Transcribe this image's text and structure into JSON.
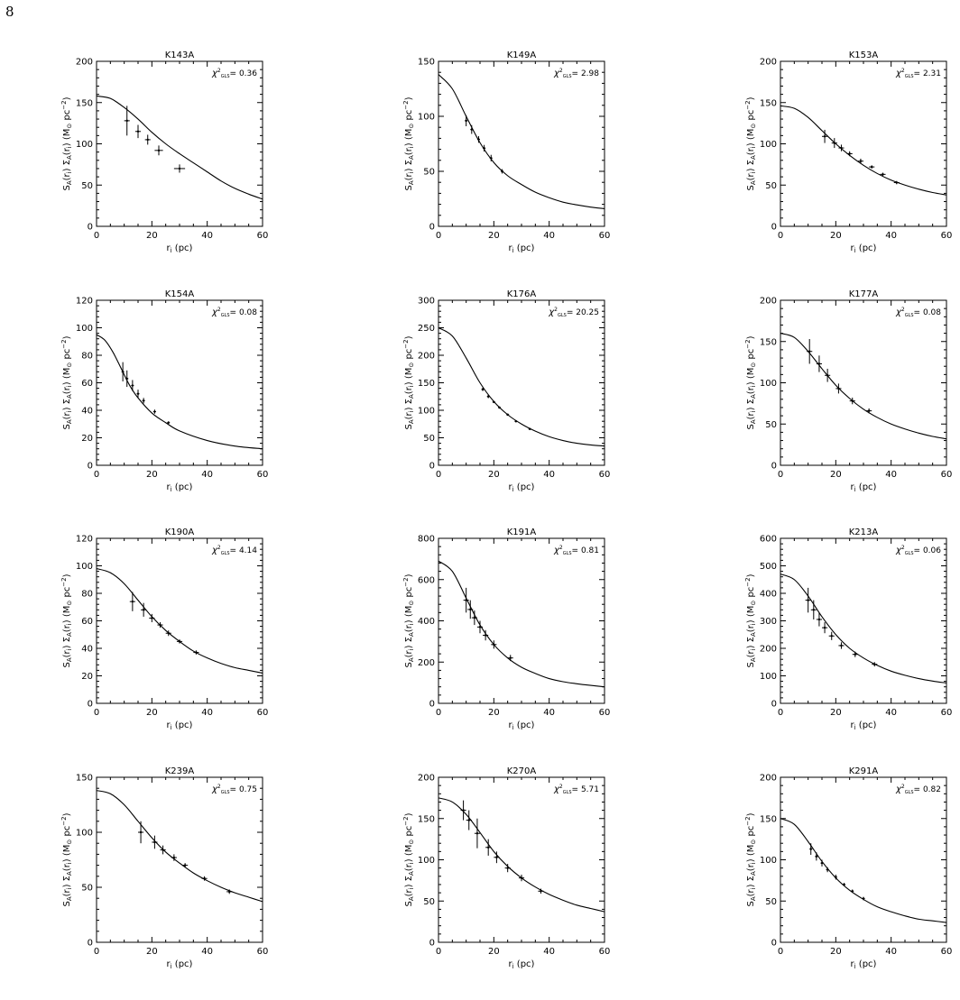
{
  "page_number": "8",
  "chart_data": [
    {
      "type": "line",
      "title": "K143A",
      "chi2_value": "0.36",
      "ylim": [
        0,
        200
      ],
      "yticks": [
        0,
        50,
        100,
        150,
        200
      ],
      "xlim": [
        0,
        60
      ],
      "xticks": [
        0,
        20,
        40,
        60
      ],
      "curve": {
        "x": [
          0,
          5,
          10,
          15,
          20,
          25,
          30,
          35,
          40,
          45,
          50,
          55,
          60
        ],
        "y": [
          158,
          155,
          144,
          130,
          114,
          100,
          88,
          77,
          66,
          55,
          46,
          39,
          33
        ]
      },
      "points": [
        {
          "x": 11,
          "y": 128,
          "xerr": 1,
          "yerr": 18
        },
        {
          "x": 15,
          "y": 115,
          "xerr": 1,
          "yerr": 8
        },
        {
          "x": 18.5,
          "y": 105,
          "xerr": 1,
          "yerr": 6
        },
        {
          "x": 22.5,
          "y": 92,
          "xerr": 1.5,
          "yerr": 6
        },
        {
          "x": 30,
          "y": 70,
          "xerr": 2,
          "yerr": 5
        }
      ]
    },
    {
      "type": "line",
      "title": "K149A",
      "chi2_value": "2.98",
      "ylim": [
        0,
        150
      ],
      "yticks": [
        0,
        50,
        100,
        150
      ],
      "xlim": [
        0,
        60
      ],
      "xticks": [
        0,
        20,
        40,
        60
      ],
      "curve": {
        "x": [
          0,
          5,
          10,
          15,
          20,
          25,
          30,
          35,
          40,
          45,
          50,
          55,
          60
        ],
        "y": [
          138,
          125,
          100,
          76,
          58,
          46,
          38,
          31,
          26,
          22,
          19.5,
          17.5,
          16
        ]
      },
      "points": [
        {
          "x": 10,
          "y": 96,
          "xerr": 0.5,
          "yerr": 5
        },
        {
          "x": 12,
          "y": 88,
          "xerr": 0.5,
          "yerr": 4
        },
        {
          "x": 14.5,
          "y": 79,
          "xerr": 0.5,
          "yerr": 3
        },
        {
          "x": 16.5,
          "y": 71,
          "xerr": 0.5,
          "yerr": 3
        },
        {
          "x": 19,
          "y": 62,
          "xerr": 0.5,
          "yerr": 3
        },
        {
          "x": 23,
          "y": 50,
          "xerr": 0.5,
          "yerr": 2
        }
      ]
    },
    {
      "type": "line",
      "title": "K153A",
      "chi2_value": "2.31",
      "ylim": [
        0,
        200
      ],
      "yticks": [
        0,
        50,
        100,
        150,
        200
      ],
      "xlim": [
        0,
        60
      ],
      "xticks": [
        0,
        20,
        40,
        60
      ],
      "curve": {
        "x": [
          0,
          5,
          10,
          15,
          20,
          25,
          30,
          35,
          40,
          45,
          50,
          55,
          60
        ],
        "y": [
          146,
          143,
          132,
          116,
          100,
          86,
          74,
          64,
          56,
          50,
          45,
          41,
          38
        ]
      },
      "points": [
        {
          "x": 16,
          "y": 109,
          "xerr": 1,
          "yerr": 8
        },
        {
          "x": 19.5,
          "y": 101,
          "xerr": 1,
          "yerr": 6
        },
        {
          "x": 22,
          "y": 95,
          "xerr": 1,
          "yerr": 4
        },
        {
          "x": 25,
          "y": 88,
          "xerr": 1,
          "yerr": 3
        },
        {
          "x": 29,
          "y": 79,
          "xerr": 1,
          "yerr": 3
        },
        {
          "x": 33,
          "y": 72,
          "xerr": 1,
          "yerr": 2
        },
        {
          "x": 37,
          "y": 63,
          "xerr": 1,
          "yerr": 2
        },
        {
          "x": 42,
          "y": 53,
          "xerr": 1,
          "yerr": 2
        }
      ]
    },
    {
      "type": "line",
      "title": "K154A",
      "chi2_value": "0.08",
      "ylim": [
        0,
        120
      ],
      "yticks": [
        0,
        20,
        40,
        60,
        80,
        100,
        120
      ],
      "xlim": [
        0,
        60
      ],
      "xticks": [
        0,
        20,
        40,
        60
      ],
      "curve": {
        "x": [
          0,
          3,
          6,
          9,
          12,
          15,
          20,
          25,
          30,
          40,
          50,
          60
        ],
        "y": [
          95,
          91,
          82,
          70,
          58,
          49,
          38,
          31,
          25,
          18,
          14,
          12
        ]
      },
      "points": [
        {
          "x": 9.5,
          "y": 68,
          "xerr": 0.5,
          "yerr": 7
        },
        {
          "x": 11,
          "y": 63,
          "xerr": 0.5,
          "yerr": 6
        },
        {
          "x": 13,
          "y": 58,
          "xerr": 0.5,
          "yerr": 4
        },
        {
          "x": 15,
          "y": 52,
          "xerr": 0.5,
          "yerr": 3
        },
        {
          "x": 17,
          "y": 47,
          "xerr": 0.5,
          "yerr": 2
        },
        {
          "x": 21,
          "y": 39,
          "xerr": 0.5,
          "yerr": 1.5
        },
        {
          "x": 26,
          "y": 31,
          "xerr": 0.5,
          "yerr": 1
        }
      ]
    },
    {
      "type": "line",
      "title": "K176A",
      "chi2_value": "20.25",
      "ylim": [
        0,
        300
      ],
      "yticks": [
        0,
        50,
        100,
        150,
        200,
        250,
        300
      ],
      "xlim": [
        0,
        60
      ],
      "xticks": [
        0,
        20,
        40,
        60
      ],
      "curve": {
        "x": [
          0,
          5,
          10,
          15,
          20,
          25,
          30,
          35,
          40,
          45,
          50,
          55,
          60
        ],
        "y": [
          250,
          235,
          195,
          150,
          116,
          92,
          75,
          62,
          52,
          45,
          40,
          37,
          35
        ]
      },
      "points": [
        {
          "x": 16,
          "y": 138,
          "xerr": 0.5,
          "yerr": 3
        },
        {
          "x": 18,
          "y": 125,
          "xerr": 0.5,
          "yerr": 3
        },
        {
          "x": 20,
          "y": 115,
          "xerr": 0.5,
          "yerr": 2
        },
        {
          "x": 22,
          "y": 105,
          "xerr": 0.5,
          "yerr": 2
        },
        {
          "x": 25,
          "y": 92,
          "xerr": 0.5,
          "yerr": 2
        },
        {
          "x": 28,
          "y": 80,
          "xerr": 0.5,
          "yerr": 2
        },
        {
          "x": 33,
          "y": 66,
          "xerr": 0.5,
          "yerr": 2
        }
      ]
    },
    {
      "type": "line",
      "title": "K177A",
      "chi2_value": "0.08",
      "ylim": [
        0,
        200
      ],
      "yticks": [
        0,
        50,
        100,
        150,
        200
      ],
      "xlim": [
        0,
        60
      ],
      "xticks": [
        0,
        20,
        40,
        60
      ],
      "curve": {
        "x": [
          0,
          5,
          10,
          15,
          20,
          25,
          30,
          35,
          40,
          45,
          50,
          55,
          60
        ],
        "y": [
          160,
          155,
          138,
          117,
          97,
          81,
          68,
          58,
          50,
          44,
          39,
          35,
          32
        ]
      },
      "points": [
        {
          "x": 10.5,
          "y": 138,
          "xerr": 1,
          "yerr": 15
        },
        {
          "x": 14,
          "y": 123,
          "xerr": 1,
          "yerr": 10
        },
        {
          "x": 17,
          "y": 109,
          "xerr": 1,
          "yerr": 8
        },
        {
          "x": 21,
          "y": 93,
          "xerr": 1,
          "yerr": 6
        },
        {
          "x": 26,
          "y": 78,
          "xerr": 1,
          "yerr": 4
        },
        {
          "x": 32,
          "y": 66,
          "xerr": 1,
          "yerr": 3
        }
      ]
    },
    {
      "type": "line",
      "title": "K190A",
      "chi2_value": "4.14",
      "ylim": [
        0,
        120
      ],
      "yticks": [
        0,
        20,
        40,
        60,
        80,
        100,
        120
      ],
      "xlim": [
        0,
        60
      ],
      "xticks": [
        0,
        20,
        40,
        60
      ],
      "curve": {
        "x": [
          0,
          5,
          10,
          15,
          20,
          25,
          30,
          35,
          40,
          45,
          50,
          55,
          60
        ],
        "y": [
          98,
          95,
          87,
          75,
          63,
          53,
          45,
          38,
          33,
          29,
          26,
          24,
          22
        ]
      },
      "points": [
        {
          "x": 13,
          "y": 74,
          "xerr": 1,
          "yerr": 7
        },
        {
          "x": 17,
          "y": 68,
          "xerr": 1,
          "yerr": 5
        },
        {
          "x": 20,
          "y": 62,
          "xerr": 1,
          "yerr": 3
        },
        {
          "x": 23,
          "y": 57,
          "xerr": 1,
          "yerr": 2
        },
        {
          "x": 26,
          "y": 51,
          "xerr": 1,
          "yerr": 2
        },
        {
          "x": 30,
          "y": 45,
          "xerr": 1,
          "yerr": 1.5
        },
        {
          "x": 36,
          "y": 37,
          "xerr": 1,
          "yerr": 1.5
        }
      ]
    },
    {
      "type": "line",
      "title": "K191A",
      "chi2_value": "0.81",
      "ylim": [
        0,
        800
      ],
      "yticks": [
        0,
        200,
        400,
        600,
        800
      ],
      "xlim": [
        0,
        60
      ],
      "xticks": [
        0,
        20,
        40,
        60
      ],
      "curve": {
        "x": [
          0,
          5,
          10,
          15,
          20,
          25,
          30,
          35,
          40,
          45,
          50,
          55,
          60
        ],
        "y": [
          690,
          640,
          510,
          380,
          285,
          220,
          175,
          145,
          120,
          105,
          95,
          87,
          80
        ]
      },
      "points": [
        {
          "x": 10,
          "y": 500,
          "xerr": 1,
          "yerr": 60
        },
        {
          "x": 11.5,
          "y": 455,
          "xerr": 1,
          "yerr": 45
        },
        {
          "x": 13,
          "y": 415,
          "xerr": 1,
          "yerr": 35
        },
        {
          "x": 15,
          "y": 370,
          "xerr": 1,
          "yerr": 30
        },
        {
          "x": 17,
          "y": 330,
          "xerr": 1,
          "yerr": 25
        },
        {
          "x": 20,
          "y": 285,
          "xerr": 1,
          "yerr": 20
        },
        {
          "x": 26,
          "y": 220,
          "xerr": 1,
          "yerr": 15
        }
      ]
    },
    {
      "type": "line",
      "title": "K213A",
      "chi2_value": "0.06",
      "ylim": [
        0,
        600
      ],
      "yticks": [
        0,
        100,
        200,
        300,
        400,
        500,
        600
      ],
      "xlim": [
        0,
        60
      ],
      "xticks": [
        0,
        20,
        40,
        60
      ],
      "curve": {
        "x": [
          0,
          5,
          10,
          15,
          20,
          25,
          30,
          35,
          40,
          45,
          50,
          55,
          60
        ],
        "y": [
          470,
          450,
          390,
          315,
          250,
          200,
          165,
          138,
          117,
          102,
          90,
          81,
          74
        ]
      },
      "points": [
        {
          "x": 10,
          "y": 375,
          "xerr": 1,
          "yerr": 45
        },
        {
          "x": 12,
          "y": 340,
          "xerr": 1,
          "yerr": 35
        },
        {
          "x": 14,
          "y": 305,
          "xerr": 1,
          "yerr": 25
        },
        {
          "x": 16,
          "y": 275,
          "xerr": 1,
          "yerr": 20
        },
        {
          "x": 18.5,
          "y": 245,
          "xerr": 1,
          "yerr": 15
        },
        {
          "x": 22,
          "y": 210,
          "xerr": 1,
          "yerr": 12
        },
        {
          "x": 27,
          "y": 178,
          "xerr": 1,
          "yerr": 10
        },
        {
          "x": 34,
          "y": 142,
          "xerr": 1,
          "yerr": 8
        }
      ]
    },
    {
      "type": "line",
      "title": "K239A",
      "chi2_value": "0.75",
      "ylim": [
        0,
        150
      ],
      "yticks": [
        0,
        50,
        100,
        150
      ],
      "xlim": [
        0,
        60
      ],
      "xticks": [
        0,
        20,
        40,
        60
      ],
      "curve": {
        "x": [
          0,
          5,
          10,
          15,
          20,
          25,
          30,
          35,
          40,
          45,
          50,
          55,
          60
        ],
        "y": [
          138,
          135,
          125,
          110,
          95,
          82,
          72,
          63,
          56,
          50,
          45,
          41,
          37
        ]
      },
      "points": [
        {
          "x": 16,
          "y": 100,
          "xerr": 1,
          "yerr": 10
        },
        {
          "x": 21,
          "y": 91,
          "xerr": 1,
          "yerr": 6
        },
        {
          "x": 24,
          "y": 84,
          "xerr": 1,
          "yerr": 4
        },
        {
          "x": 28,
          "y": 77,
          "xerr": 1,
          "yerr": 3
        },
        {
          "x": 32,
          "y": 70,
          "xerr": 1,
          "yerr": 2
        },
        {
          "x": 39,
          "y": 58,
          "xerr": 1,
          "yerr": 2
        },
        {
          "x": 48,
          "y": 46,
          "xerr": 1,
          "yerr": 2
        }
      ]
    },
    {
      "type": "line",
      "title": "K270A",
      "chi2_value": "5.71",
      "ylim": [
        0,
        200
      ],
      "yticks": [
        0,
        50,
        100,
        150,
        200
      ],
      "xlim": [
        0,
        60
      ],
      "xticks": [
        0,
        20,
        40,
        60
      ],
      "curve": {
        "x": [
          0,
          5,
          10,
          15,
          20,
          25,
          30,
          35,
          40,
          45,
          50,
          55,
          60
        ],
        "y": [
          175,
          170,
          155,
          133,
          110,
          92,
          78,
          67,
          58,
          51,
          45,
          41,
          37
        ]
      },
      "points": [
        {
          "x": 9,
          "y": 160,
          "xerr": 1,
          "yerr": 12
        },
        {
          "x": 11,
          "y": 148,
          "xerr": 1,
          "yerr": 12
        },
        {
          "x": 14,
          "y": 132,
          "xerr": 1,
          "yerr": 18
        },
        {
          "x": 18,
          "y": 115,
          "xerr": 1,
          "yerr": 10
        },
        {
          "x": 21,
          "y": 103,
          "xerr": 1,
          "yerr": 7
        },
        {
          "x": 25,
          "y": 90,
          "xerr": 1,
          "yerr": 5
        },
        {
          "x": 30,
          "y": 78,
          "xerr": 1,
          "yerr": 4
        },
        {
          "x": 37,
          "y": 62,
          "xerr": 1,
          "yerr": 3
        }
      ]
    },
    {
      "type": "line",
      "title": "K291A",
      "chi2_value": "0.82",
      "ylim": [
        0,
        200
      ],
      "yticks": [
        0,
        50,
        100,
        150,
        200
      ],
      "xlim": [
        0,
        60
      ],
      "xticks": [
        0,
        20,
        40,
        60
      ],
      "curve": {
        "x": [
          0,
          5,
          10,
          15,
          20,
          25,
          30,
          35,
          40,
          45,
          50,
          55,
          60
        ],
        "y": [
          150,
          143,
          122,
          98,
          78,
          63,
          52,
          43,
          37,
          32,
          28,
          26,
          24
        ]
      },
      "points": [
        {
          "x": 11,
          "y": 113,
          "xerr": 0.5,
          "yerr": 7
        },
        {
          "x": 13,
          "y": 104,
          "xerr": 0.5,
          "yerr": 5
        },
        {
          "x": 15,
          "y": 96,
          "xerr": 0.5,
          "yerr": 4
        },
        {
          "x": 17,
          "y": 88,
          "xerr": 0.5,
          "yerr": 3
        },
        {
          "x": 20,
          "y": 79,
          "xerr": 0.5,
          "yerr": 3
        },
        {
          "x": 23,
          "y": 70,
          "xerr": 0.5,
          "yerr": 2
        },
        {
          "x": 26,
          "y": 62,
          "xerr": 0.5,
          "yerr": 2
        },
        {
          "x": 30,
          "y": 53,
          "xerr": 0.5,
          "yerr": 2
        }
      ]
    }
  ],
  "axis_text": {
    "xlabel_main": "r",
    "xlabel_sub": "i",
    "xlabel_unit": " (pc)",
    "ylabel_parts": {
      "s": "S",
      "sub_a": "A",
      "ri": "(r",
      "ri_sub": "i",
      "close": ")",
      "sigma": " Σ",
      "unit_open": " (M",
      "sun": "⊙",
      "unit_pc": " pc",
      "unit_exp": "−2",
      "unit_close": ")"
    },
    "chi_label": {
      "chi": "χ",
      "exp": "2",
      "sub": "GLS",
      "eq": "= "
    }
  }
}
